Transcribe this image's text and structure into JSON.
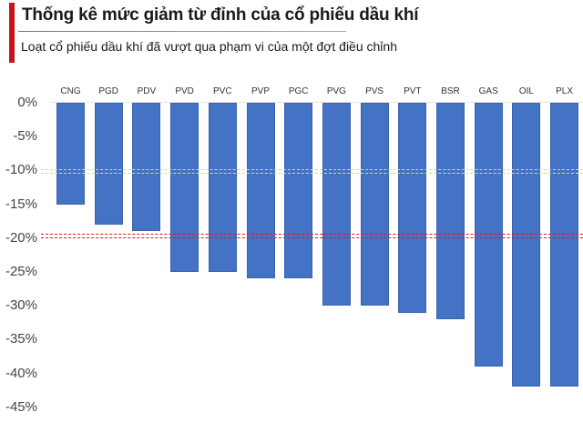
{
  "header": {
    "title": "Thống kê mức giảm từ đỉnh của cổ phiếu dầu khí",
    "subtitle": "Loạt cổ phiếu dầu khí đã vượt qua phạm vi của một đợt điều chỉnh"
  },
  "colors": {
    "accent": "#c4161c",
    "bar": "#4472c4",
    "ref_line_10": "#f4e60a",
    "ref_line_20": "#e8141a"
  },
  "axis": {
    "y_ticks": [
      "0%",
      "-5%",
      "-10%",
      "-15%",
      "-20%",
      "-25%",
      "-30%",
      "-35%",
      "-40%",
      "-45%"
    ]
  },
  "chart_data": {
    "type": "bar",
    "title": "Thống kê mức giảm từ đỉnh của cổ phiếu dầu khí",
    "subtitle": "Loạt cổ phiếu dầu khí đã vượt qua phạm vi của một đợt điều chỉnh",
    "xlabel": "",
    "ylabel": "",
    "categories": [
      "CNG",
      "PGD",
      "PDV",
      "PVD",
      "PVC",
      "PVP",
      "PGC",
      "PVG",
      "PVS",
      "PVT",
      "BSR",
      "GAS",
      "OIL",
      "PLX"
    ],
    "values": [
      -15,
      -18,
      -19,
      -25,
      -25,
      -26,
      -26,
      -30,
      -30,
      -31,
      -32,
      -39,
      -42,
      -42
    ],
    "unit": "%",
    "ylim": [
      -45,
      0
    ],
    "y_ticks": [
      0,
      -5,
      -10,
      -15,
      -20,
      -25,
      -30,
      -35,
      -40,
      -45
    ],
    "x_labels_position": "top",
    "grid": false,
    "legend": null,
    "reference_lines": [
      {
        "y": -10,
        "color": "#f4e60a",
        "style": "dashed"
      },
      {
        "y": -19.5,
        "color": "#e8141a",
        "style": "dashed"
      }
    ]
  }
}
